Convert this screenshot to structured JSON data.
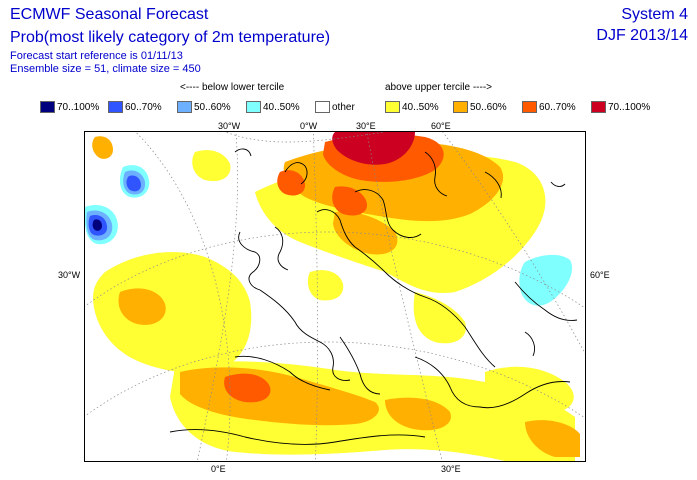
{
  "header": {
    "title": "ECMWF Seasonal Forecast",
    "subtitle": "Prob(most likely category of 2m temperature)",
    "forecast_start": "Forecast start reference is 01/11/13",
    "ensemble": "Ensemble size = 51, climate size = 450",
    "system": "System 4",
    "season": "DJF 2013/14"
  },
  "legend": {
    "below_heading": "<---- below lower tercile",
    "above_heading": "above upper tercile ---->",
    "items": [
      {
        "label": "70..100%",
        "color": "#00007f"
      },
      {
        "label": "60..70%",
        "color": "#3055ff"
      },
      {
        "label": "50..60%",
        "color": "#6cb0ff"
      },
      {
        "label": "40..50%",
        "color": "#80ffff"
      },
      {
        "label": "other",
        "color": "#ffffff"
      },
      {
        "label": "40..50%",
        "color": "#ffff33"
      },
      {
        "label": "50..60%",
        "color": "#ffb000"
      },
      {
        "label": "60..70%",
        "color": "#ff5a00"
      },
      {
        "label": "70..100%",
        "color": "#cc0020"
      }
    ]
  },
  "map": {
    "top_labels": [
      "30°W",
      "0°W",
      "30°E",
      "60°E"
    ],
    "bottom_labels": [
      "0°E",
      "30°E"
    ],
    "left_label": "30°W",
    "right_label": "60°E"
  }
}
